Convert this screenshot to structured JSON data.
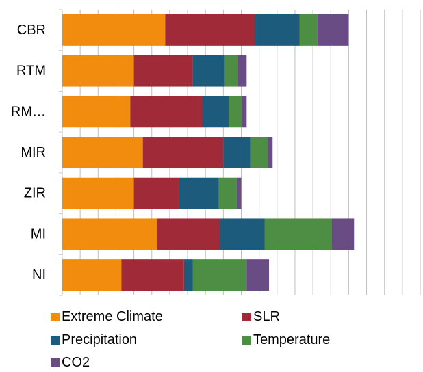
{
  "chart_data": {
    "type": "bar",
    "orientation": "horizontal",
    "stacked": true,
    "categories": [
      "CBR",
      "RTM",
      "RM…",
      "MIR",
      "ZIR",
      "MI",
      "NI"
    ],
    "series": [
      {
        "name": "Extreme Climate",
        "color": "#F28C0F",
        "values": [
          5.75,
          4.0,
          3.8,
          4.5,
          4.0,
          5.3,
          3.3
        ]
      },
      {
        "name": "SLR",
        "color": "#A12A38",
        "values": [
          5.0,
          3.3,
          4.0,
          4.5,
          2.5,
          3.5,
          3.5
        ]
      },
      {
        "name": "Precipitation",
        "color": "#1D5B7D",
        "values": [
          2.5,
          1.75,
          1.5,
          1.5,
          2.25,
          2.5,
          0.5
        ]
      },
      {
        "name": "Temperature",
        "color": "#4E8D44",
        "values": [
          1.0,
          0.75,
          0.75,
          1.0,
          1.0,
          3.75,
          3.0
        ]
      },
      {
        "name": "CO2",
        "color": "#6A4C85",
        "values": [
          1.75,
          0.5,
          0.25,
          0.25,
          0.25,
          1.25,
          1.25
        ]
      }
    ],
    "xlim": [
      0,
      20
    ],
    "x_gridlines": 20,
    "grid": true,
    "legend_position": "bottom"
  }
}
